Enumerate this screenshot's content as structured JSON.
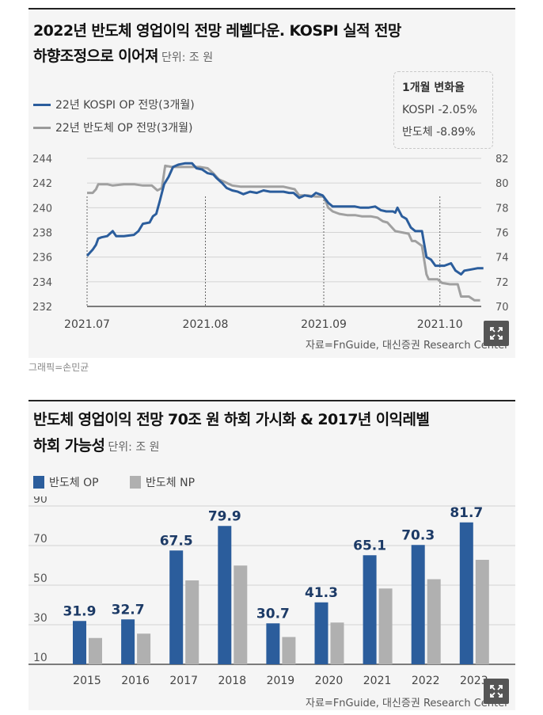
{
  "panel1": {
    "title_line1": "2022년 반도체 영업이익 전망 레벨다운. KOSPI 실적 전망",
    "title_line2": "하향조정으로 이어져",
    "unit": "단위: 조 원",
    "change_box": {
      "header": "1개월 변화율",
      "kospi": "KOSPI -2.05%",
      "semi": "반도체 -8.89%"
    },
    "source": "자료=FnGuide, 대신증권 Research Center",
    "credit": "그래픽=손민균"
  },
  "panel2": {
    "title_line1": "반도체 영업이익 전망 70조 원 하회 가시화 & 2017년 이익레벨",
    "title_line2": "하회 가능성",
    "unit": "단위: 조 원",
    "source": "자료=FnGuide, 대신증권 Research Center"
  },
  "chart_data": [
    {
      "type": "line",
      "x_ticks": [
        "2021.07",
        "2021.08",
        "2021.09",
        "2021.10"
      ],
      "left_axis_ticks": [
        "244",
        "242",
        "240",
        "238",
        "236",
        "234",
        "232"
      ],
      "right_axis_ticks": [
        "82",
        "80",
        "78",
        "76",
        "74",
        "72",
        "70"
      ],
      "ylim_left": [
        232,
        244
      ],
      "ylim_right": [
        70,
        82
      ],
      "colors": {
        "kospi": "#2b5d9c",
        "semi": "#a0a0a0"
      },
      "series": [
        {
          "name": "22년 KOSPI OP 전망(3개월)",
          "axis": "left",
          "points": [
            [
              0.0,
              236.1
            ],
            [
              0.5,
              236.6
            ],
            [
              0.8,
              237.0
            ],
            [
              1.0,
              237.5
            ],
            [
              1.3,
              237.6
            ],
            [
              1.8,
              237.7
            ],
            [
              2.3,
              238.1
            ],
            [
              2.6,
              237.7
            ],
            [
              3.3,
              237.7
            ],
            [
              4.2,
              237.8
            ],
            [
              4.6,
              238.1
            ],
            [
              5.0,
              238.7
            ],
            [
              5.6,
              238.8
            ],
            [
              5.9,
              239.3
            ],
            [
              6.2,
              239.5
            ],
            [
              6.5,
              240.5
            ],
            [
              6.9,
              241.9
            ],
            [
              7.3,
              242.5
            ],
            [
              7.7,
              243.3
            ],
            [
              8.2,
              243.5
            ],
            [
              8.8,
              243.6
            ],
            [
              9.4,
              243.6
            ],
            [
              9.8,
              243.2
            ],
            [
              10.3,
              243.1
            ],
            [
              10.8,
              242.8
            ],
            [
              11.3,
              242.7
            ],
            [
              11.6,
              242.4
            ],
            [
              12.1,
              242.0
            ],
            [
              12.5,
              241.6
            ],
            [
              13.0,
              241.4
            ],
            [
              13.5,
              241.3
            ],
            [
              14.0,
              241.1
            ],
            [
              14.6,
              241.3
            ],
            [
              15.2,
              241.2
            ],
            [
              15.8,
              241.4
            ],
            [
              16.4,
              241.3
            ],
            [
              17.1,
              241.3
            ],
            [
              17.6,
              241.3
            ],
            [
              18.1,
              241.2
            ],
            [
              18.5,
              241.2
            ],
            [
              19.0,
              240.8
            ],
            [
              19.5,
              241.0
            ],
            [
              20.1,
              240.9
            ],
            [
              20.5,
              241.2
            ],
            [
              21.1,
              241.0
            ],
            [
              21.6,
              240.4
            ],
            [
              22.0,
              240.1
            ],
            [
              22.6,
              240.1
            ],
            [
              23.3,
              240.1
            ],
            [
              24.0,
              240.1
            ],
            [
              24.5,
              240.0
            ],
            [
              25.2,
              240.0
            ],
            [
              25.8,
              240.1
            ],
            [
              26.3,
              239.8
            ],
            [
              26.8,
              239.7
            ],
            [
              27.4,
              239.7
            ],
            [
              27.6,
              239.6
            ],
            [
              27.8,
              240.0
            ],
            [
              28.2,
              239.3
            ],
            [
              28.6,
              239.1
            ],
            [
              29.0,
              238.4
            ],
            [
              29.4,
              238.1
            ],
            [
              30.0,
              238.1
            ],
            [
              30.4,
              236.0
            ],
            [
              30.8,
              235.8
            ],
            [
              31.2,
              235.3
            ],
            [
              32.0,
              235.3
            ],
            [
              32.6,
              235.5
            ],
            [
              33.0,
              234.9
            ],
            [
              33.5,
              234.6
            ],
            [
              33.8,
              234.9
            ],
            [
              34.4,
              235.0
            ],
            [
              35.0,
              235.1
            ],
            [
              35.5,
              235.1
            ]
          ]
        },
        {
          "name": "22년 반도체 OP 전망(3개월)",
          "axis": "right",
          "points": [
            [
              0.0,
              79.2
            ],
            [
              0.5,
              79.2
            ],
            [
              0.8,
              79.5
            ],
            [
              1.0,
              79.9
            ],
            [
              1.8,
              79.9
            ],
            [
              2.3,
              79.8
            ],
            [
              3.3,
              79.9
            ],
            [
              4.2,
              79.9
            ],
            [
              5.0,
              79.8
            ],
            [
              5.8,
              79.8
            ],
            [
              6.3,
              79.4
            ],
            [
              6.7,
              79.6
            ],
            [
              7.0,
              81.4
            ],
            [
              7.6,
              81.3
            ],
            [
              8.6,
              81.3
            ],
            [
              9.5,
              81.3
            ],
            [
              10.1,
              81.3
            ],
            [
              10.8,
              81.2
            ],
            [
              11.3,
              80.8
            ],
            [
              11.8,
              80.3
            ],
            [
              12.3,
              80.1
            ],
            [
              13.0,
              79.8
            ],
            [
              13.8,
              79.7
            ],
            [
              14.5,
              79.7
            ],
            [
              15.5,
              79.7
            ],
            [
              16.6,
              79.7
            ],
            [
              17.6,
              79.7
            ],
            [
              18.6,
              79.5
            ],
            [
              19.0,
              79.0
            ],
            [
              19.8,
              79.0
            ],
            [
              20.5,
              78.9
            ],
            [
              21.2,
              78.9
            ],
            [
              21.6,
              78.0
            ],
            [
              22.0,
              77.7
            ],
            [
              22.6,
              77.5
            ],
            [
              23.3,
              77.4
            ],
            [
              24.0,
              77.4
            ],
            [
              24.6,
              77.3
            ],
            [
              25.4,
              77.3
            ],
            [
              26.0,
              77.2
            ],
            [
              26.5,
              76.9
            ],
            [
              26.9,
              76.8
            ],
            [
              27.6,
              76.1
            ],
            [
              28.2,
              76.0
            ],
            [
              28.8,
              75.9
            ],
            [
              29.1,
              75.3
            ],
            [
              29.4,
              75.3
            ],
            [
              30.0,
              74.9
            ],
            [
              30.4,
              72.6
            ],
            [
              30.6,
              72.2
            ],
            [
              31.4,
              72.2
            ],
            [
              31.8,
              71.9
            ],
            [
              32.5,
              71.8
            ],
            [
              33.2,
              71.8
            ],
            [
              33.5,
              70.8
            ],
            [
              34.2,
              70.8
            ],
            [
              34.7,
              70.5
            ],
            [
              35.2,
              70.5
            ]
          ]
        }
      ]
    },
    {
      "type": "bar",
      "categories": [
        "2015",
        "2016",
        "2017",
        "2018",
        "2019",
        "2020",
        "2021",
        "2022",
        "2023"
      ],
      "ylim": [
        10,
        90
      ],
      "y_ticks": [
        "90",
        "70",
        "50",
        "30",
        "10"
      ],
      "colors": {
        "op": "#2b5d9c",
        "np": "#b0b0b0"
      },
      "series": [
        {
          "name": "반도체 OP",
          "values": [
            31.9,
            32.7,
            67.5,
            79.9,
            30.7,
            41.3,
            65.1,
            70.3,
            81.7
          ],
          "labels": [
            "31.9",
            "32.7",
            "67.5",
            "79.9",
            "30.7",
            "41.3",
            "65.1",
            "70.3",
            "81.7"
          ]
        },
        {
          "name": "반도체 NP",
          "values": [
            23.3,
            25.5,
            52.4,
            59.9,
            23.8,
            31.1,
            48.3,
            53.0,
            62.8
          ]
        }
      ]
    }
  ]
}
